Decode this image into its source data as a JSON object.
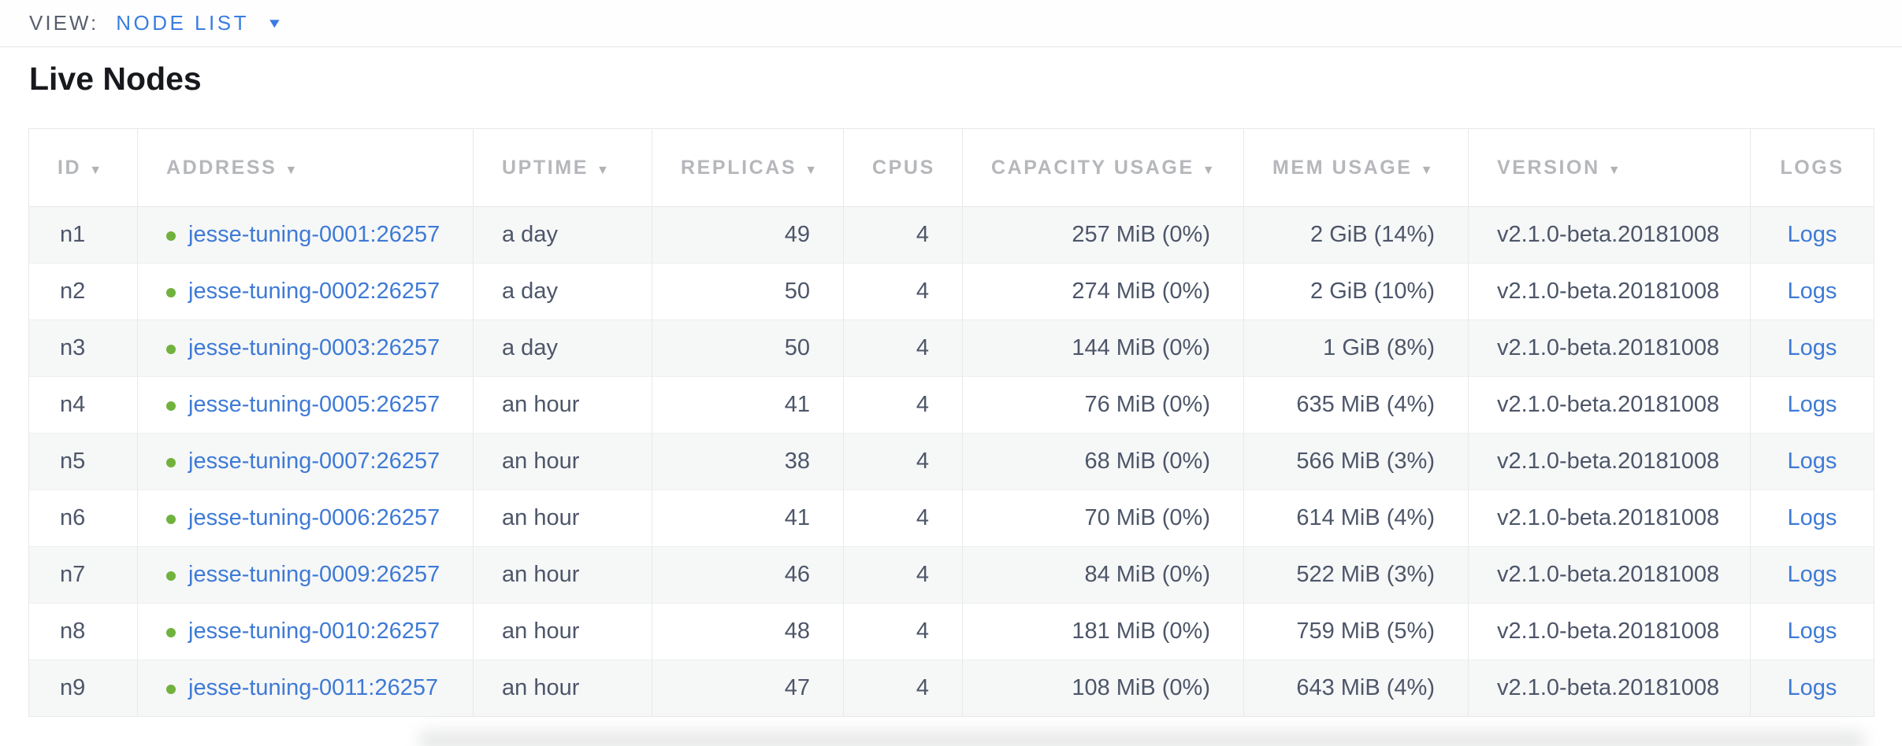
{
  "view_selector": {
    "label": "VIEW:",
    "value": "NODE LIST",
    "caret": "▼"
  },
  "page": {
    "title": "Live Nodes"
  },
  "table": {
    "sort_icon": "▼",
    "columns": [
      {
        "key": "id",
        "label": "ID",
        "sortable": true
      },
      {
        "key": "address",
        "label": "ADDRESS",
        "sortable": true
      },
      {
        "key": "uptime",
        "label": "UPTIME",
        "sortable": true
      },
      {
        "key": "replicas",
        "label": "REPLICAS",
        "sortable": true
      },
      {
        "key": "cpus",
        "label": "CPUS",
        "sortable": false
      },
      {
        "key": "capacity",
        "label": "CAPACITY USAGE",
        "sortable": true
      },
      {
        "key": "mem",
        "label": "MEM USAGE",
        "sortable": true
      },
      {
        "key": "version",
        "label": "VERSION",
        "sortable": true
      },
      {
        "key": "logs",
        "label": "LOGS",
        "sortable": false
      }
    ],
    "rows": [
      {
        "id": "n1",
        "address": "jesse-tuning-0001:26257",
        "uptime": "a day",
        "replicas": "49",
        "cpus": "4",
        "capacity": "257 MiB (0%)",
        "mem": "2 GiB (14%)",
        "version": "v2.1.0-beta.20181008",
        "logs": "Logs"
      },
      {
        "id": "n2",
        "address": "jesse-tuning-0002:26257",
        "uptime": "a day",
        "replicas": "50",
        "cpus": "4",
        "capacity": "274 MiB (0%)",
        "mem": "2 GiB (10%)",
        "version": "v2.1.0-beta.20181008",
        "logs": "Logs"
      },
      {
        "id": "n3",
        "address": "jesse-tuning-0003:26257",
        "uptime": "a day",
        "replicas": "50",
        "cpus": "4",
        "capacity": "144 MiB (0%)",
        "mem": "1 GiB (8%)",
        "version": "v2.1.0-beta.20181008",
        "logs": "Logs"
      },
      {
        "id": "n4",
        "address": "jesse-tuning-0005:26257",
        "uptime": "an hour",
        "replicas": "41",
        "cpus": "4",
        "capacity": "76 MiB (0%)",
        "mem": "635 MiB (4%)",
        "version": "v2.1.0-beta.20181008",
        "logs": "Logs"
      },
      {
        "id": "n5",
        "address": "jesse-tuning-0007:26257",
        "uptime": "an hour",
        "replicas": "38",
        "cpus": "4",
        "capacity": "68 MiB (0%)",
        "mem": "566 MiB (3%)",
        "version": "v2.1.0-beta.20181008",
        "logs": "Logs"
      },
      {
        "id": "n6",
        "address": "jesse-tuning-0006:26257",
        "uptime": "an hour",
        "replicas": "41",
        "cpus": "4",
        "capacity": "70 MiB (0%)",
        "mem": "614 MiB (4%)",
        "version": "v2.1.0-beta.20181008",
        "logs": "Logs"
      },
      {
        "id": "n7",
        "address": "jesse-tuning-0009:26257",
        "uptime": "an hour",
        "replicas": "46",
        "cpus": "4",
        "capacity": "84 MiB (0%)",
        "mem": "522 MiB (3%)",
        "version": "v2.1.0-beta.20181008",
        "logs": "Logs"
      },
      {
        "id": "n8",
        "address": "jesse-tuning-0010:26257",
        "uptime": "an hour",
        "replicas": "48",
        "cpus": "4",
        "capacity": "181 MiB (0%)",
        "mem": "759 MiB (5%)",
        "version": "v2.1.0-beta.20181008",
        "logs": "Logs"
      },
      {
        "id": "n9",
        "address": "jesse-tuning-0011:26257",
        "uptime": "an hour",
        "replicas": "47",
        "cpus": "4",
        "capacity": "108 MiB (0%)",
        "mem": "643 MiB (4%)",
        "version": "v2.1.0-beta.20181008",
        "logs": "Logs"
      }
    ]
  },
  "colors": {
    "accent_blue": "#3a7de1",
    "link_blue": "#3e7ad6",
    "status_green": "#71b23e",
    "header_gray": "#b5b7bb",
    "text_dark": "#4d5669"
  }
}
